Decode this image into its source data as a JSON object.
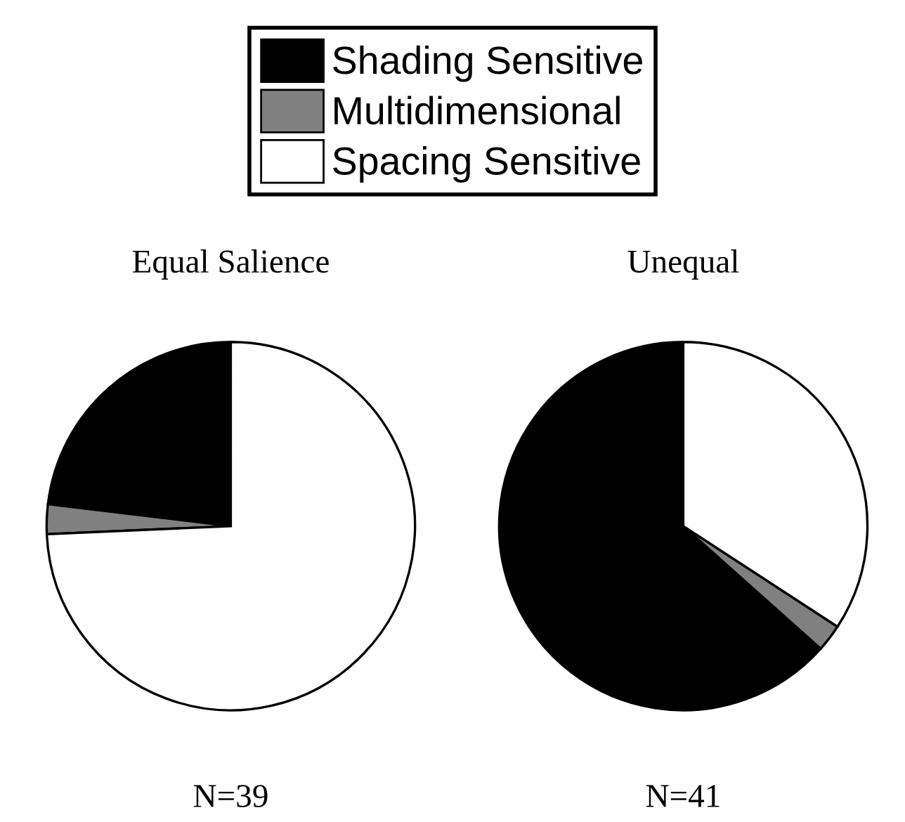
{
  "chart_data": [
    {
      "type": "pie",
      "title": "Equal Salience",
      "categories": [
        "Shading Sensitive",
        "Multidimensional",
        "Spacing Sensitive"
      ],
      "values": [
        23.1,
        2.6,
        74.3
      ],
      "colors": [
        "#000000",
        "#808080",
        "#ffffff"
      ],
      "legend": "top",
      "annotations": [
        "N=39"
      ]
    },
    {
      "type": "pie",
      "title": "Unequal",
      "categories": [
        null,
        null,
        null
      ],
      "values": [
        63.4,
        2.4,
        34.2
      ],
      "colors": [
        "#000000",
        "#808080",
        "#ffffff"
      ],
      "legend": false,
      "annotations": [
        "N=41"
      ]
    }
  ]
}
